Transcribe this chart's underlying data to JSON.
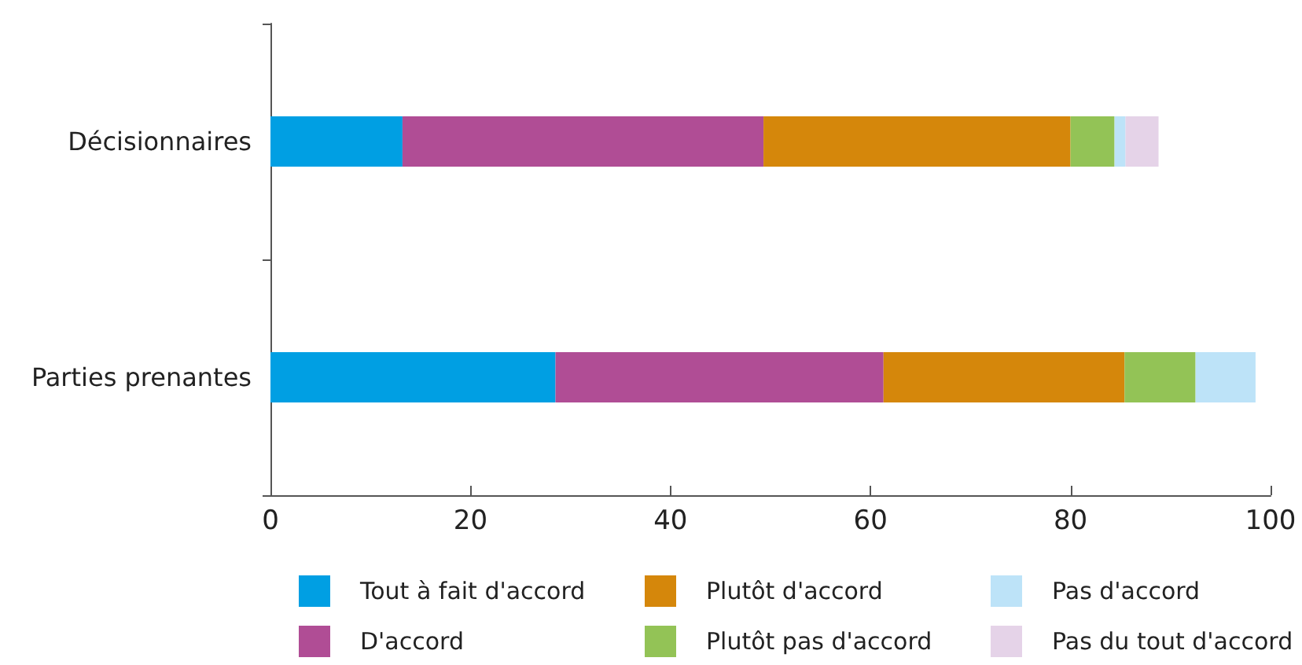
{
  "chart_data": {
    "type": "bar",
    "orientation": "horizontal",
    "stacked": true,
    "categories": [
      "Décisionnaires",
      "Parties prenantes"
    ],
    "series": [
      {
        "name": "Tout à fait d'accord",
        "color": "#009fe3",
        "values": [
          13.2,
          28.5
        ]
      },
      {
        "name": "D'accord",
        "color": "#b04d95",
        "values": [
          36.1,
          32.8
        ]
      },
      {
        "name": "Plutôt d'accord",
        "color": "#d5870b",
        "values": [
          30.7,
          24.1
        ]
      },
      {
        "name": "Plutôt pas d'accord",
        "color": "#93c356",
        "values": [
          4.4,
          7.1
        ]
      },
      {
        "name": "Pas d'accord",
        "color": "#bde3f8",
        "values": [
          1.1,
          6.0
        ]
      },
      {
        "name": "Pas du tout d'accord",
        "color": "#e5d3e8",
        "values": [
          3.3,
          0
        ]
      }
    ],
    "xlim": [
      0,
      100
    ],
    "xticks": [
      0,
      20,
      40,
      60,
      80,
      100
    ],
    "grid": false,
    "legend": "bottom"
  }
}
